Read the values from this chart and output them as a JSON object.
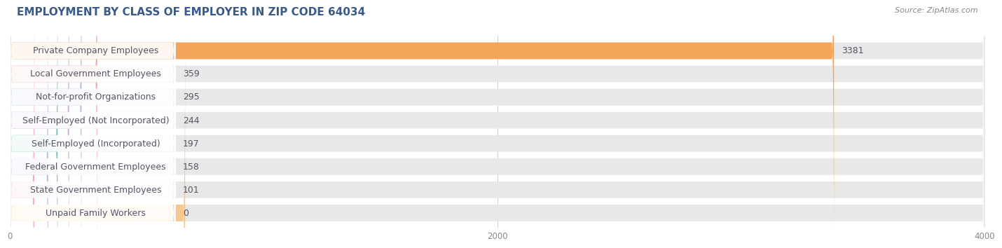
{
  "title": "EMPLOYMENT BY CLASS OF EMPLOYER IN ZIP CODE 64034",
  "source": "Source: ZipAtlas.com",
  "categories": [
    "Private Company Employees",
    "Local Government Employees",
    "Not-for-profit Organizations",
    "Self-Employed (Not Incorporated)",
    "Self-Employed (Incorporated)",
    "Federal Government Employees",
    "State Government Employees",
    "Unpaid Family Workers"
  ],
  "values": [
    3381,
    359,
    295,
    244,
    197,
    158,
    101,
    0
  ],
  "bar_colors": [
    "#f5a55a",
    "#f0a0a0",
    "#aabcde",
    "#c8aed4",
    "#72c4bc",
    "#b8b8e8",
    "#f5a0bc",
    "#f5c890"
  ],
  "bar_bg_color": "#e8e8e8",
  "label_box_color": "#ffffff",
  "background_color": "#ffffff",
  "text_color": "#555566",
  "title_color": "#3a5a8a",
  "xlim_max": 4000,
  "xticks": [
    0,
    2000,
    4000
  ],
  "title_fontsize": 11,
  "source_fontsize": 8,
  "label_fontsize": 9,
  "value_fontsize": 9
}
